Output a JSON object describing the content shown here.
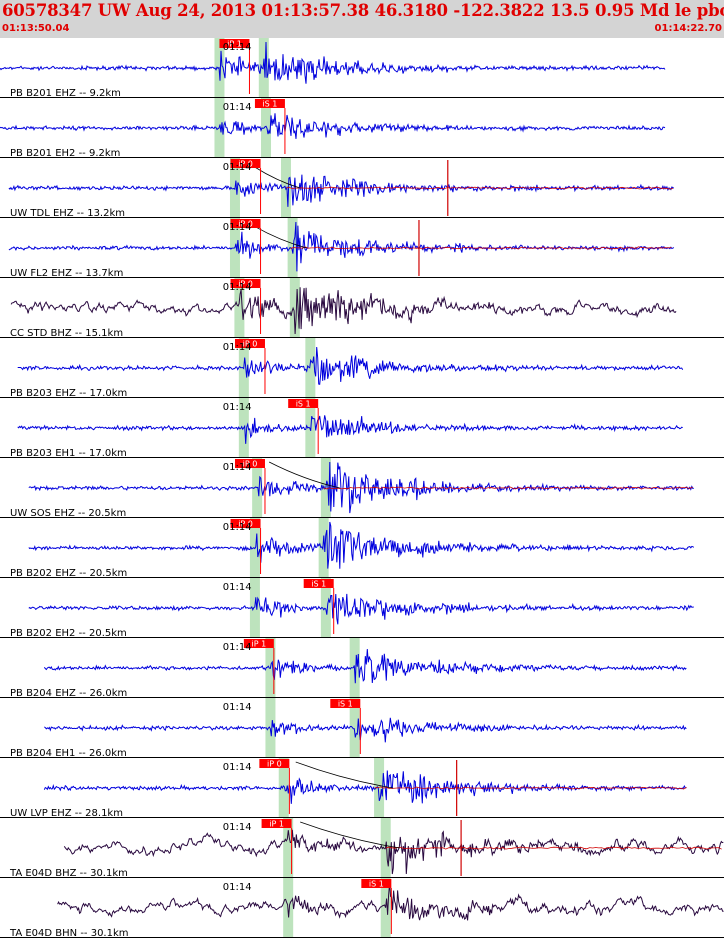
{
  "header": {
    "title": "60578347 UW Aug 24, 2013 01:13:57.38    46.3180 -122.3822 13.5 0.95 Md le pbodin UW 01    2",
    "start_time": "01:13:50.04",
    "end_time": "01:14:22.70"
  },
  "colors": {
    "trace": "#0000dd",
    "broadband_trace": "#2a0a40",
    "pick_flag": "#ff0000",
    "pick_window": "#bde3bd",
    "synthetic": "#d00000",
    "separator": "#000000"
  },
  "chart_data": {
    "type": "line",
    "title": "60578347 UW Aug 24, 2013 01:13:57.38    46.3180 -122.3822 13.5 0.95 Md le pbodin UW 01    2",
    "x_unit": "seconds after 01:13:50.04",
    "xlim": [
      0,
      32.66
    ],
    "minute_tick_label": "01:14",
    "minute_tick_s": 9.96,
    "traces": [
      {
        "label": "PB B201 EHZ -- 9.2km",
        "kind": "sp",
        "start_s": 0.0,
        "end_s": 30.0,
        "amp": "medium",
        "onset_s": 9.9,
        "s_s": 11.9,
        "picks": [
          {
            "text": "iP 1",
            "t": 9.9
          }
        ],
        "minute": true,
        "curve": false,
        "synthetic": null,
        "spike": null
      },
      {
        "label": "PB B201 EH2 -- 9.2km",
        "kind": "sp",
        "start_s": 0.0,
        "end_s": 30.0,
        "amp": "low",
        "onset_s": 9.9,
        "s_s": 12.0,
        "picks": [
          {
            "text": "iS 1",
            "t": 11.5
          }
        ],
        "minute": true,
        "curve": false,
        "synthetic": null,
        "spike": null
      },
      {
        "label": "UW TDL EHZ -- 13.2km",
        "kind": "sp",
        "start_s": 0.4,
        "end_s": 30.4,
        "amp": "medium",
        "onset_s": 10.6,
        "s_s": 12.9,
        "picks": [
          {
            "text": "iP 0",
            "t": 10.4
          }
        ],
        "minute": true,
        "curve": true,
        "synthetic": 12.9,
        "spike": 20.2
      },
      {
        "label": "UW FL2 EHZ -- 13.7km",
        "kind": "sp",
        "start_s": 0.4,
        "end_s": 30.4,
        "amp": "medium",
        "onset_s": 10.6,
        "s_s": 13.2,
        "picks": [
          {
            "text": "iP 0",
            "t": 10.4
          }
        ],
        "minute": true,
        "curve": true,
        "synthetic": 13.1,
        "spike": 18.9
      },
      {
        "label": "CC STD BHZ -- 15.1km",
        "kind": "bb",
        "start_s": 0.5,
        "end_s": 30.5,
        "amp": "high",
        "onset_s": 10.8,
        "s_s": 13.3,
        "picks": [
          {
            "text": "iP 0",
            "t": 10.4
          }
        ],
        "minute": true,
        "curve": false,
        "synthetic": null,
        "spike": null
      },
      {
        "label": "PB B203 EHZ -- 17.0km",
        "kind": "sp",
        "start_s": 0.8,
        "end_s": 30.8,
        "amp": "medium",
        "onset_s": 11.0,
        "s_s": 14.0,
        "picks": [
          {
            "text": "iP 0",
            "t": 10.6
          }
        ],
        "minute": true,
        "curve": false,
        "synthetic": null,
        "spike": null
      },
      {
        "label": "PB B203 EH1 -- 17.0km",
        "kind": "sp",
        "start_s": 0.8,
        "end_s": 30.8,
        "amp": "low",
        "onset_s": 11.0,
        "s_s": 14.0,
        "picks": [
          {
            "text": "iS 1",
            "t": 13.0
          }
        ],
        "minute": true,
        "curve": false,
        "synthetic": null,
        "spike": null
      },
      {
        "label": "UW SOS EHZ -- 20.5km",
        "kind": "sp",
        "start_s": 1.3,
        "end_s": 31.3,
        "amp": "high",
        "onset_s": 11.6,
        "s_s": 14.7,
        "picks": [
          {
            "text": "iP 0",
            "t": 10.6
          }
        ],
        "minute": true,
        "curve": true,
        "synthetic": 14.6,
        "spike": null
      },
      {
        "label": "PB B202 EHZ -- 20.5km",
        "kind": "sp",
        "start_s": 1.3,
        "end_s": 31.3,
        "amp": "high",
        "onset_s": 11.5,
        "s_s": 14.6,
        "picks": [
          {
            "text": "iP 0",
            "t": 10.4
          }
        ],
        "minute": true,
        "curve": false,
        "synthetic": null,
        "spike": null
      },
      {
        "label": "PB B202 EH2 -- 20.5km",
        "kind": "sp",
        "start_s": 1.3,
        "end_s": 31.3,
        "amp": "medium",
        "onset_s": 11.5,
        "s_s": 14.7,
        "picks": [
          {
            "text": "iS 1",
            "t": 13.7
          }
        ],
        "minute": true,
        "curve": false,
        "synthetic": null,
        "spike": null
      },
      {
        "label": "PB B204 EHZ -- 26.0km",
        "kind": "sp",
        "start_s": 2.0,
        "end_s": 31.0,
        "amp": "medium",
        "onset_s": 12.2,
        "s_s": 16.0,
        "picks": [
          {
            "text": "iP 1",
            "t": 11.0
          }
        ],
        "minute": true,
        "curve": false,
        "synthetic": null,
        "spike": null
      },
      {
        "label": "PB B204 EH1 -- 26.0km",
        "kind": "sp",
        "start_s": 2.0,
        "end_s": 31.0,
        "amp": "low",
        "onset_s": 12.2,
        "s_s": 16.0,
        "picks": [
          {
            "text": "iS 1",
            "t": 14.9
          }
        ],
        "minute": true,
        "curve": false,
        "synthetic": null,
        "spike": null
      },
      {
        "label": "UW LVP EHZ -- 28.1km",
        "kind": "sp",
        "start_s": 2.0,
        "end_s": 31.0,
        "amp": "medium",
        "onset_s": 12.8,
        "s_s": 17.1,
        "picks": [
          {
            "text": "iP 0",
            "t": 11.7
          }
        ],
        "minute": true,
        "curve": true,
        "synthetic": 16.9,
        "spike": 20.6
      },
      {
        "label": "TA E04D BHZ -- 30.1km",
        "kind": "bb",
        "start_s": 2.9,
        "end_s": 32.66,
        "amp": "medium",
        "onset_s": 13.0,
        "s_s": 17.4,
        "picks": [
          {
            "text": "iP 1",
            "t": 11.8
          }
        ],
        "minute": true,
        "curve": true,
        "synthetic": 17.4,
        "spike": 20.8
      },
      {
        "label": "TA E04D BHN -- 30.1km",
        "kind": "bb",
        "start_s": 2.6,
        "end_s": 32.66,
        "amp": "low",
        "onset_s": 13.0,
        "s_s": 17.4,
        "picks": [
          {
            "text": "iS 1",
            "t": 16.3
          }
        ],
        "minute": true,
        "curve": false,
        "synthetic": null,
        "spike": null
      }
    ]
  }
}
